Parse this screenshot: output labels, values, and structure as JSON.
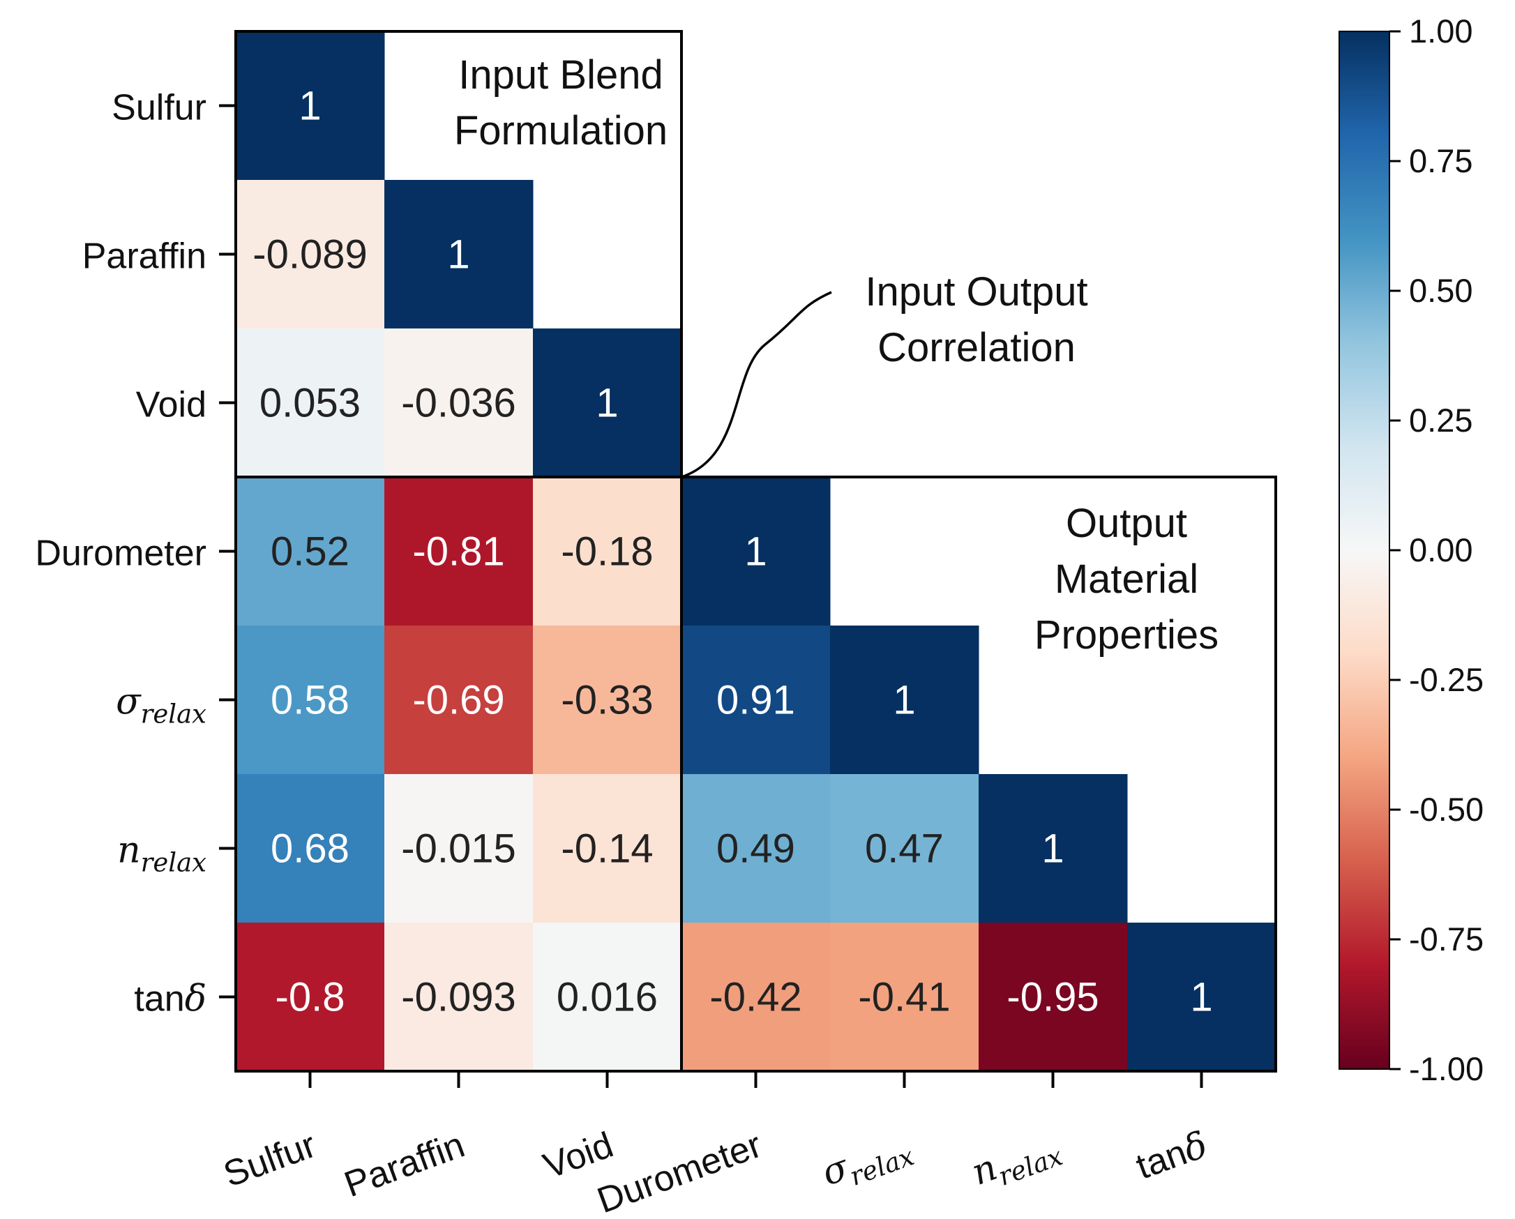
{
  "chart_data": {
    "type": "heatmap",
    "title": "",
    "variables": [
      {
        "name": "Sulfur",
        "math": null,
        "base": "Sulfur",
        "sub": ""
      },
      {
        "name": "Paraffin",
        "math": null,
        "base": "Paraffin",
        "sub": ""
      },
      {
        "name": "Void",
        "math": null,
        "base": "Void",
        "sub": ""
      },
      {
        "name": "Durometer",
        "math": null,
        "base": "Durometer",
        "sub": ""
      },
      {
        "name": "σrelax",
        "math": "sub",
        "base": "σ",
        "sub": "relax"
      },
      {
        "name": "nrelax",
        "math": "sub",
        "base": "n",
        "sub": "relax"
      },
      {
        "name": "tanδ",
        "math": "tail",
        "base": "tan",
        "sub": "δ"
      }
    ],
    "matrix": [
      [
        1,
        null,
        null,
        null,
        null,
        null,
        null
      ],
      [
        -0.089,
        1,
        null,
        null,
        null,
        null,
        null
      ],
      [
        0.053,
        -0.036,
        1,
        null,
        null,
        null,
        null
      ],
      [
        0.52,
        -0.81,
        -0.18,
        1,
        null,
        null,
        null
      ],
      [
        0.58,
        -0.69,
        -0.33,
        0.91,
        1,
        null,
        null
      ],
      [
        0.68,
        -0.015,
        -0.14,
        0.49,
        0.47,
        1,
        null
      ],
      [
        -0.8,
        -0.093,
        0.016,
        -0.42,
        -0.41,
        -0.95,
        1
      ]
    ],
    "labels": [
      [
        "1",
        "",
        "",
        "",
        "",
        "",
        ""
      ],
      [
        "-0.089",
        "1",
        "",
        "",
        "",
        "",
        ""
      ],
      [
        "0.053",
        "-0.036",
        "1",
        "",
        "",
        "",
        ""
      ],
      [
        "0.52",
        "-0.81",
        "-0.18",
        "1",
        "",
        "",
        ""
      ],
      [
        "0.58",
        "-0.69",
        "-0.33",
        "0.91",
        "1",
        "",
        ""
      ],
      [
        "0.68",
        "-0.015",
        "-0.14",
        "0.49",
        "0.47",
        "1",
        ""
      ],
      [
        "-0.8",
        "-0.093",
        "0.016",
        "-0.42",
        "-0.41",
        "-0.95",
        "1"
      ]
    ],
    "color_scale": {
      "name": "RdBu",
      "vmin": -1.0,
      "vmax": 1.0,
      "stops": [
        "#67001f",
        "#b2182b",
        "#d6604d",
        "#f4a582",
        "#fddbc7",
        "#f7f7f7",
        "#d1e5f0",
        "#92c5de",
        "#4393c3",
        "#2166ac",
        "#053061"
      ]
    },
    "colorbar_ticks": [
      "1.00",
      "0.75",
      "0.50",
      "0.25",
      "0.00",
      "-0.25",
      "-0.50",
      "-0.75",
      "-1.00"
    ],
    "groups": [
      {
        "title_lines": [
          "Input Blend",
          "Formulation"
        ],
        "variables": [
          "Sulfur",
          "Paraffin",
          "Void"
        ]
      },
      {
        "title_lines": [
          "Output",
          "Material",
          "Properties"
        ],
        "variables": [
          "Durometer",
          "σrelax",
          "nrelax",
          "tanδ"
        ]
      }
    ],
    "callout_lines": [
      "Input Output",
      "Correlation"
    ],
    "xlabel": "",
    "ylabel": ""
  }
}
